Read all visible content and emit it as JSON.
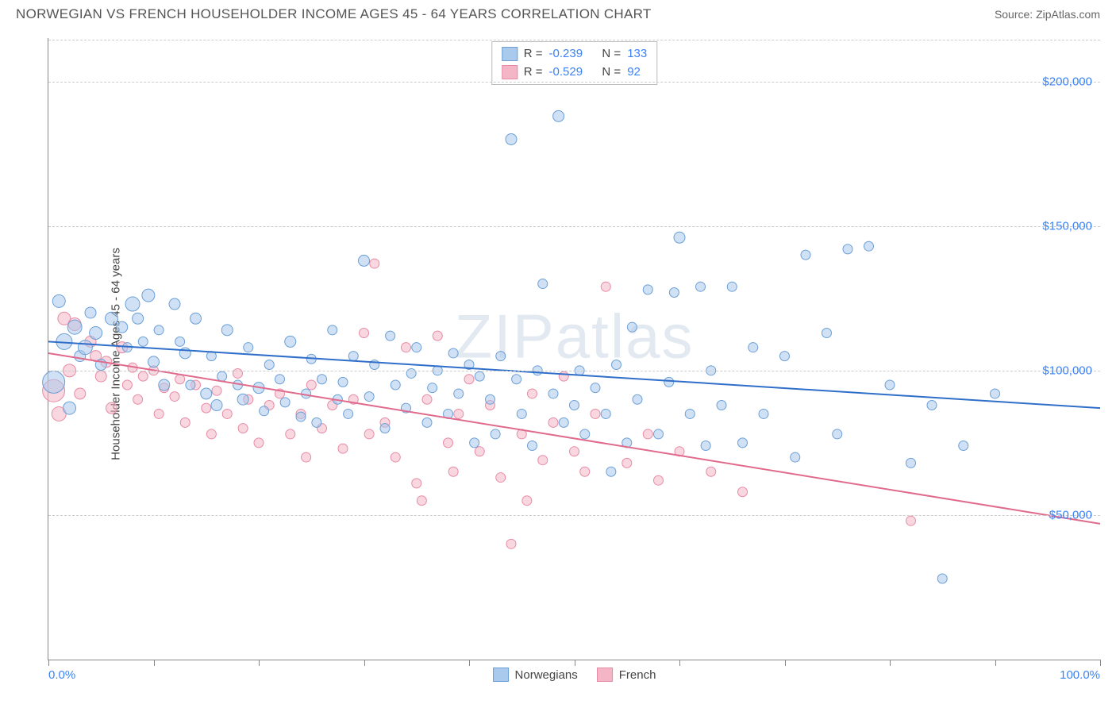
{
  "title": "NORWEGIAN VS FRENCH HOUSEHOLDER INCOME AGES 45 - 64 YEARS CORRELATION CHART",
  "source": "Source: ZipAtlas.com",
  "ylabel": "Householder Income Ages 45 - 64 years",
  "watermark": "ZIPatlas",
  "chart": {
    "type": "scatter",
    "xlim": [
      0,
      100
    ],
    "ylim": [
      0,
      215000
    ],
    "xtick_positions": [
      0,
      10,
      20,
      30,
      40,
      50,
      60,
      70,
      80,
      90,
      100
    ],
    "xtick_labels": {
      "0": "0.0%",
      "100": "100.0%"
    },
    "ytick_positions": [
      50000,
      100000,
      150000,
      200000
    ],
    "ytick_labels": [
      "$50,000",
      "$100,000",
      "$150,000",
      "$200,000"
    ],
    "grid_color": "#cccccc",
    "background_color": "#ffffff",
    "axis_color": "#888888",
    "tick_label_color": "#3b82f6",
    "label_fontsize": 15,
    "title_fontsize": 17
  },
  "series": {
    "norwegians": {
      "label": "Norwegians",
      "fill_color": "#a9c9ed",
      "stroke_color": "#6b9fd6",
      "fill_opacity": 0.55,
      "marker_radius_range": [
        5,
        14
      ],
      "regression": {
        "y_at_x0": 110000,
        "y_at_x100": 87000,
        "color": "#2f6fc9",
        "width": 2
      },
      "stats": {
        "R_label": "R =",
        "R_value": "-0.239",
        "N_label": "N =",
        "N_value": "133"
      },
      "points": [
        {
          "x": 0.5,
          "y": 96000,
          "r": 14
        },
        {
          "x": 1,
          "y": 124000,
          "r": 8
        },
        {
          "x": 1.5,
          "y": 110000,
          "r": 10
        },
        {
          "x": 2,
          "y": 87000,
          "r": 8
        },
        {
          "x": 2.5,
          "y": 115000,
          "r": 9
        },
        {
          "x": 3,
          "y": 105000,
          "r": 7
        },
        {
          "x": 3.5,
          "y": 108000,
          "r": 9
        },
        {
          "x": 4,
          "y": 120000,
          "r": 7
        },
        {
          "x": 4.5,
          "y": 113000,
          "r": 8
        },
        {
          "x": 5,
          "y": 102000,
          "r": 7
        },
        {
          "x": 6,
          "y": 118000,
          "r": 8
        },
        {
          "x": 7,
          "y": 115000,
          "r": 7
        },
        {
          "x": 7.5,
          "y": 108000,
          "r": 6
        },
        {
          "x": 8,
          "y": 123000,
          "r": 9
        },
        {
          "x": 8.5,
          "y": 118000,
          "r": 7
        },
        {
          "x": 9,
          "y": 110000,
          "r": 6
        },
        {
          "x": 9.5,
          "y": 126000,
          "r": 8
        },
        {
          "x": 10,
          "y": 103000,
          "r": 7
        },
        {
          "x": 10.5,
          "y": 114000,
          "r": 6
        },
        {
          "x": 11,
          "y": 95000,
          "r": 7
        },
        {
          "x": 12,
          "y": 123000,
          "r": 7
        },
        {
          "x": 12.5,
          "y": 110000,
          "r": 6
        },
        {
          "x": 13,
          "y": 106000,
          "r": 7
        },
        {
          "x": 13.5,
          "y": 95000,
          "r": 6
        },
        {
          "x": 14,
          "y": 118000,
          "r": 7
        },
        {
          "x": 15,
          "y": 92000,
          "r": 7
        },
        {
          "x": 15.5,
          "y": 105000,
          "r": 6
        },
        {
          "x": 16,
          "y": 88000,
          "r": 7
        },
        {
          "x": 16.5,
          "y": 98000,
          "r": 6
        },
        {
          "x": 17,
          "y": 114000,
          "r": 7
        },
        {
          "x": 18,
          "y": 95000,
          "r": 6
        },
        {
          "x": 18.5,
          "y": 90000,
          "r": 7
        },
        {
          "x": 19,
          "y": 108000,
          "r": 6
        },
        {
          "x": 20,
          "y": 94000,
          "r": 7
        },
        {
          "x": 20.5,
          "y": 86000,
          "r": 6
        },
        {
          "x": 21,
          "y": 102000,
          "r": 6
        },
        {
          "x": 22,
          "y": 97000,
          "r": 6
        },
        {
          "x": 22.5,
          "y": 89000,
          "r": 6
        },
        {
          "x": 23,
          "y": 110000,
          "r": 7
        },
        {
          "x": 24,
          "y": 84000,
          "r": 6
        },
        {
          "x": 24.5,
          "y": 92000,
          "r": 6
        },
        {
          "x": 25,
          "y": 104000,
          "r": 6
        },
        {
          "x": 25.5,
          "y": 82000,
          "r": 6
        },
        {
          "x": 26,
          "y": 97000,
          "r": 6
        },
        {
          "x": 27,
          "y": 114000,
          "r": 6
        },
        {
          "x": 27.5,
          "y": 90000,
          "r": 6
        },
        {
          "x": 28,
          "y": 96000,
          "r": 6
        },
        {
          "x": 28.5,
          "y": 85000,
          "r": 6
        },
        {
          "x": 29,
          "y": 105000,
          "r": 6
        },
        {
          "x": 30,
          "y": 138000,
          "r": 7
        },
        {
          "x": 30.5,
          "y": 91000,
          "r": 6
        },
        {
          "x": 31,
          "y": 102000,
          "r": 6
        },
        {
          "x": 32,
          "y": 80000,
          "r": 6
        },
        {
          "x": 32.5,
          "y": 112000,
          "r": 6
        },
        {
          "x": 33,
          "y": 95000,
          "r": 6
        },
        {
          "x": 34,
          "y": 87000,
          "r": 6
        },
        {
          "x": 34.5,
          "y": 99000,
          "r": 6
        },
        {
          "x": 35,
          "y": 108000,
          "r": 6
        },
        {
          "x": 36,
          "y": 82000,
          "r": 6
        },
        {
          "x": 36.5,
          "y": 94000,
          "r": 6
        },
        {
          "x": 37,
          "y": 100000,
          "r": 6
        },
        {
          "x": 38,
          "y": 85000,
          "r": 6
        },
        {
          "x": 38.5,
          "y": 106000,
          "r": 6
        },
        {
          "x": 39,
          "y": 92000,
          "r": 6
        },
        {
          "x": 40,
          "y": 102000,
          "r": 6
        },
        {
          "x": 40.5,
          "y": 75000,
          "r": 6
        },
        {
          "x": 41,
          "y": 98000,
          "r": 6
        },
        {
          "x": 42,
          "y": 90000,
          "r": 6
        },
        {
          "x": 42.5,
          "y": 78000,
          "r": 6
        },
        {
          "x": 43,
          "y": 105000,
          "r": 6
        },
        {
          "x": 44,
          "y": 180000,
          "r": 7
        },
        {
          "x": 44.5,
          "y": 97000,
          "r": 6
        },
        {
          "x": 45,
          "y": 85000,
          "r": 6
        },
        {
          "x": 46,
          "y": 74000,
          "r": 6
        },
        {
          "x": 46.5,
          "y": 100000,
          "r": 6
        },
        {
          "x": 47,
          "y": 130000,
          "r": 6
        },
        {
          "x": 48,
          "y": 92000,
          "r": 6
        },
        {
          "x": 48.5,
          "y": 188000,
          "r": 7
        },
        {
          "x": 49,
          "y": 82000,
          "r": 6
        },
        {
          "x": 50,
          "y": 88000,
          "r": 6
        },
        {
          "x": 50.5,
          "y": 100000,
          "r": 6
        },
        {
          "x": 51,
          "y": 78000,
          "r": 6
        },
        {
          "x": 52,
          "y": 94000,
          "r": 6
        },
        {
          "x": 53,
          "y": 85000,
          "r": 6
        },
        {
          "x": 53.5,
          "y": 65000,
          "r": 6
        },
        {
          "x": 54,
          "y": 102000,
          "r": 6
        },
        {
          "x": 55,
          "y": 75000,
          "r": 6
        },
        {
          "x": 55.5,
          "y": 115000,
          "r": 6
        },
        {
          "x": 56,
          "y": 90000,
          "r": 6
        },
        {
          "x": 57,
          "y": 128000,
          "r": 6
        },
        {
          "x": 58,
          "y": 78000,
          "r": 6
        },
        {
          "x": 59,
          "y": 96000,
          "r": 6
        },
        {
          "x": 59.5,
          "y": 127000,
          "r": 6
        },
        {
          "x": 60,
          "y": 146000,
          "r": 7
        },
        {
          "x": 61,
          "y": 85000,
          "r": 6
        },
        {
          "x": 62,
          "y": 129000,
          "r": 6
        },
        {
          "x": 62.5,
          "y": 74000,
          "r": 6
        },
        {
          "x": 63,
          "y": 100000,
          "r": 6
        },
        {
          "x": 64,
          "y": 88000,
          "r": 6
        },
        {
          "x": 65,
          "y": 129000,
          "r": 6
        },
        {
          "x": 66,
          "y": 75000,
          "r": 6
        },
        {
          "x": 67,
          "y": 108000,
          "r": 6
        },
        {
          "x": 68,
          "y": 85000,
          "r": 6
        },
        {
          "x": 70,
          "y": 105000,
          "r": 6
        },
        {
          "x": 71,
          "y": 70000,
          "r": 6
        },
        {
          "x": 72,
          "y": 140000,
          "r": 6
        },
        {
          "x": 74,
          "y": 113000,
          "r": 6
        },
        {
          "x": 75,
          "y": 78000,
          "r": 6
        },
        {
          "x": 76,
          "y": 142000,
          "r": 6
        },
        {
          "x": 78,
          "y": 143000,
          "r": 6
        },
        {
          "x": 80,
          "y": 95000,
          "r": 6
        },
        {
          "x": 82,
          "y": 68000,
          "r": 6
        },
        {
          "x": 84,
          "y": 88000,
          "r": 6
        },
        {
          "x": 85,
          "y": 28000,
          "r": 6
        },
        {
          "x": 87,
          "y": 74000,
          "r": 6
        },
        {
          "x": 90,
          "y": 92000,
          "r": 6
        }
      ]
    },
    "french": {
      "label": "French",
      "fill_color": "#f4b6c6",
      "stroke_color": "#e88aa4",
      "fill_opacity": 0.55,
      "marker_radius_range": [
        5,
        14
      ],
      "regression": {
        "y_at_x0": 106000,
        "y_at_x100": 47000,
        "color": "#e06a8c",
        "width": 2
      },
      "stats": {
        "R_label": "R =",
        "R_value": "-0.529",
        "N_label": "N =",
        "N_value": "92"
      },
      "points": [
        {
          "x": 0.5,
          "y": 93000,
          "r": 14
        },
        {
          "x": 1,
          "y": 85000,
          "r": 9
        },
        {
          "x": 1.5,
          "y": 118000,
          "r": 8
        },
        {
          "x": 2,
          "y": 100000,
          "r": 8
        },
        {
          "x": 2.5,
          "y": 116000,
          "r": 8
        },
        {
          "x": 3,
          "y": 92000,
          "r": 7
        },
        {
          "x": 4,
          "y": 110000,
          "r": 7
        },
        {
          "x": 4.5,
          "y": 105000,
          "r": 7
        },
        {
          "x": 5,
          "y": 98000,
          "r": 7
        },
        {
          "x": 5.5,
          "y": 103000,
          "r": 7
        },
        {
          "x": 6,
          "y": 87000,
          "r": 7
        },
        {
          "x": 7,
          "y": 108000,
          "r": 7
        },
        {
          "x": 7.5,
          "y": 95000,
          "r": 6
        },
        {
          "x": 8,
          "y": 101000,
          "r": 6
        },
        {
          "x": 8.5,
          "y": 90000,
          "r": 6
        },
        {
          "x": 9,
          "y": 98000,
          "r": 6
        },
        {
          "x": 10,
          "y": 100000,
          "r": 6
        },
        {
          "x": 10.5,
          "y": 85000,
          "r": 6
        },
        {
          "x": 11,
          "y": 94000,
          "r": 6
        },
        {
          "x": 12,
          "y": 91000,
          "r": 6
        },
        {
          "x": 12.5,
          "y": 97000,
          "r": 6
        },
        {
          "x": 13,
          "y": 82000,
          "r": 6
        },
        {
          "x": 14,
          "y": 95000,
          "r": 6
        },
        {
          "x": 15,
          "y": 87000,
          "r": 6
        },
        {
          "x": 15.5,
          "y": 78000,
          "r": 6
        },
        {
          "x": 16,
          "y": 93000,
          "r": 6
        },
        {
          "x": 17,
          "y": 85000,
          "r": 6
        },
        {
          "x": 18,
          "y": 99000,
          "r": 6
        },
        {
          "x": 18.5,
          "y": 80000,
          "r": 6
        },
        {
          "x": 19,
          "y": 90000,
          "r": 6
        },
        {
          "x": 20,
          "y": 75000,
          "r": 6
        },
        {
          "x": 21,
          "y": 88000,
          "r": 6
        },
        {
          "x": 22,
          "y": 92000,
          "r": 6
        },
        {
          "x": 23,
          "y": 78000,
          "r": 6
        },
        {
          "x": 24,
          "y": 85000,
          "r": 6
        },
        {
          "x": 24.5,
          "y": 70000,
          "r": 6
        },
        {
          "x": 25,
          "y": 95000,
          "r": 6
        },
        {
          "x": 26,
          "y": 80000,
          "r": 6
        },
        {
          "x": 27,
          "y": 88000,
          "r": 6
        },
        {
          "x": 28,
          "y": 73000,
          "r": 6
        },
        {
          "x": 29,
          "y": 90000,
          "r": 6
        },
        {
          "x": 30,
          "y": 113000,
          "r": 6
        },
        {
          "x": 30.5,
          "y": 78000,
          "r": 6
        },
        {
          "x": 31,
          "y": 137000,
          "r": 6
        },
        {
          "x": 32,
          "y": 82000,
          "r": 6
        },
        {
          "x": 33,
          "y": 70000,
          "r": 6
        },
        {
          "x": 34,
          "y": 108000,
          "r": 6
        },
        {
          "x": 35,
          "y": 61000,
          "r": 6
        },
        {
          "x": 35.5,
          "y": 55000,
          "r": 6
        },
        {
          "x": 36,
          "y": 90000,
          "r": 6
        },
        {
          "x": 37,
          "y": 112000,
          "r": 6
        },
        {
          "x": 38,
          "y": 75000,
          "r": 6
        },
        {
          "x": 38.5,
          "y": 65000,
          "r": 6
        },
        {
          "x": 39,
          "y": 85000,
          "r": 6
        },
        {
          "x": 40,
          "y": 97000,
          "r": 6
        },
        {
          "x": 41,
          "y": 72000,
          "r": 6
        },
        {
          "x": 42,
          "y": 88000,
          "r": 6
        },
        {
          "x": 43,
          "y": 63000,
          "r": 6
        },
        {
          "x": 44,
          "y": 40000,
          "r": 6
        },
        {
          "x": 45,
          "y": 78000,
          "r": 6
        },
        {
          "x": 45.5,
          "y": 55000,
          "r": 6
        },
        {
          "x": 46,
          "y": 92000,
          "r": 6
        },
        {
          "x": 47,
          "y": 69000,
          "r": 6
        },
        {
          "x": 48,
          "y": 82000,
          "r": 6
        },
        {
          "x": 49,
          "y": 98000,
          "r": 6
        },
        {
          "x": 50,
          "y": 72000,
          "r": 6
        },
        {
          "x": 51,
          "y": 65000,
          "r": 6
        },
        {
          "x": 52,
          "y": 85000,
          "r": 6
        },
        {
          "x": 53,
          "y": 129000,
          "r": 6
        },
        {
          "x": 55,
          "y": 68000,
          "r": 6
        },
        {
          "x": 57,
          "y": 78000,
          "r": 6
        },
        {
          "x": 58,
          "y": 62000,
          "r": 6
        },
        {
          "x": 60,
          "y": 72000,
          "r": 6
        },
        {
          "x": 63,
          "y": 65000,
          "r": 6
        },
        {
          "x": 66,
          "y": 58000,
          "r": 6
        },
        {
          "x": 82,
          "y": 48000,
          "r": 6
        }
      ]
    }
  },
  "legend": {
    "items": [
      "norwegians",
      "french"
    ]
  }
}
